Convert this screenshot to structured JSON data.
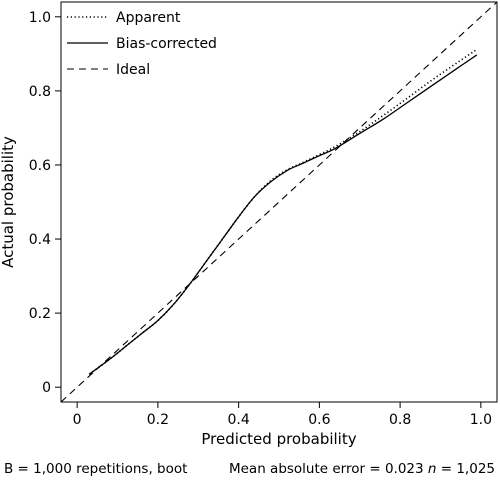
{
  "chart_data": {
    "type": "line",
    "xlabel": "Predicted probability",
    "ylabel": "Actual probability",
    "xlim": [
      -0.04,
      1.04
    ],
    "ylim": [
      -0.04,
      1.04
    ],
    "x_ticks": [
      0,
      0.2,
      0.4,
      0.6,
      0.8,
      1.0
    ],
    "x_tick_labels": [
      "0",
      "0.2",
      "0.4",
      "0.6",
      "0.8",
      "1.0"
    ],
    "y_ticks": [
      0,
      0.2,
      0.4,
      0.6,
      0.8,
      1.0
    ],
    "y_tick_labels": [
      "0",
      "0.2",
      "0.4",
      "0.6",
      "0.8",
      "1.0"
    ],
    "grid": false,
    "legend_position": "top-left",
    "series": [
      {
        "name": "Apparent",
        "style": "dotted",
        "x": [
          0.03,
          0.08,
          0.12,
          0.16,
          0.2,
          0.24,
          0.28,
          0.32,
          0.36,
          0.4,
          0.44,
          0.48,
          0.52,
          0.56,
          0.6,
          0.64,
          0.7,
          0.76,
          0.82,
          0.88,
          0.94,
          0.99
        ],
        "y": [
          0.035,
          0.075,
          0.11,
          0.145,
          0.18,
          0.225,
          0.28,
          0.34,
          0.4,
          0.46,
          0.515,
          0.558,
          0.587,
          0.607,
          0.628,
          0.65,
          0.69,
          0.735,
          0.782,
          0.83,
          0.875,
          0.912
        ]
      },
      {
        "name": "Bias-corrected",
        "style": "solid",
        "x": [
          0.03,
          0.08,
          0.12,
          0.16,
          0.2,
          0.24,
          0.28,
          0.32,
          0.36,
          0.4,
          0.44,
          0.48,
          0.52,
          0.56,
          0.6,
          0.64,
          0.7,
          0.76,
          0.82,
          0.88,
          0.94,
          0.99
        ],
        "y": [
          0.035,
          0.075,
          0.11,
          0.145,
          0.18,
          0.225,
          0.28,
          0.34,
          0.4,
          0.46,
          0.515,
          0.555,
          0.585,
          0.605,
          0.625,
          0.645,
          0.685,
          0.725,
          0.77,
          0.815,
          0.86,
          0.897
        ]
      },
      {
        "name": "Ideal",
        "style": "dashed",
        "x": [
          -0.04,
          1.04
        ],
        "y": [
          -0.04,
          1.04
        ]
      }
    ]
  },
  "footnotes": {
    "left": "B = 1,000 repetitions, boot",
    "right_prefix": "Mean absolute error = 0.023 ",
    "n_symbol": "n",
    "right_suffix": " = 1,025"
  }
}
